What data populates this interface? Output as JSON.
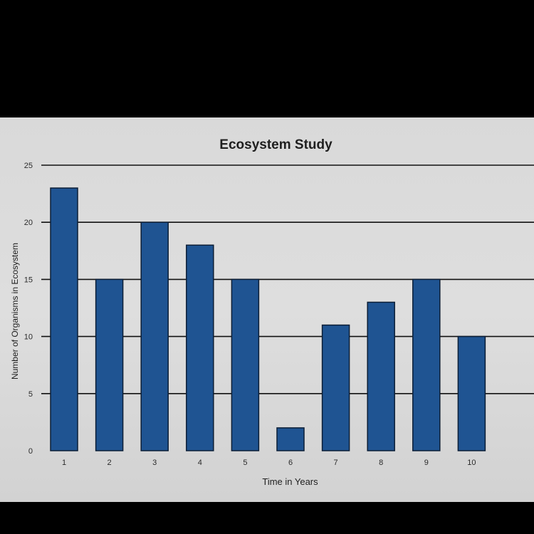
{
  "chart_data": {
    "type": "bar",
    "title": "Ecosystem Study",
    "xlabel": "Time in Years",
    "ylabel": "Number of Organisms in Ecosystem",
    "categories": [
      "1",
      "2",
      "3",
      "4",
      "5",
      "6",
      "7",
      "8",
      "9",
      "10"
    ],
    "values": [
      23,
      15,
      20,
      18,
      15,
      2,
      11,
      13,
      15,
      10
    ],
    "ylim": [
      0,
      25
    ],
    "yticks": [
      "0",
      "5",
      "10",
      "15",
      "20",
      "25"
    ],
    "grid": true,
    "legend": "none",
    "colors": {
      "bar": "#1f5492",
      "bar_outline": "#0c1e36",
      "background": "#d9d9d9"
    }
  }
}
